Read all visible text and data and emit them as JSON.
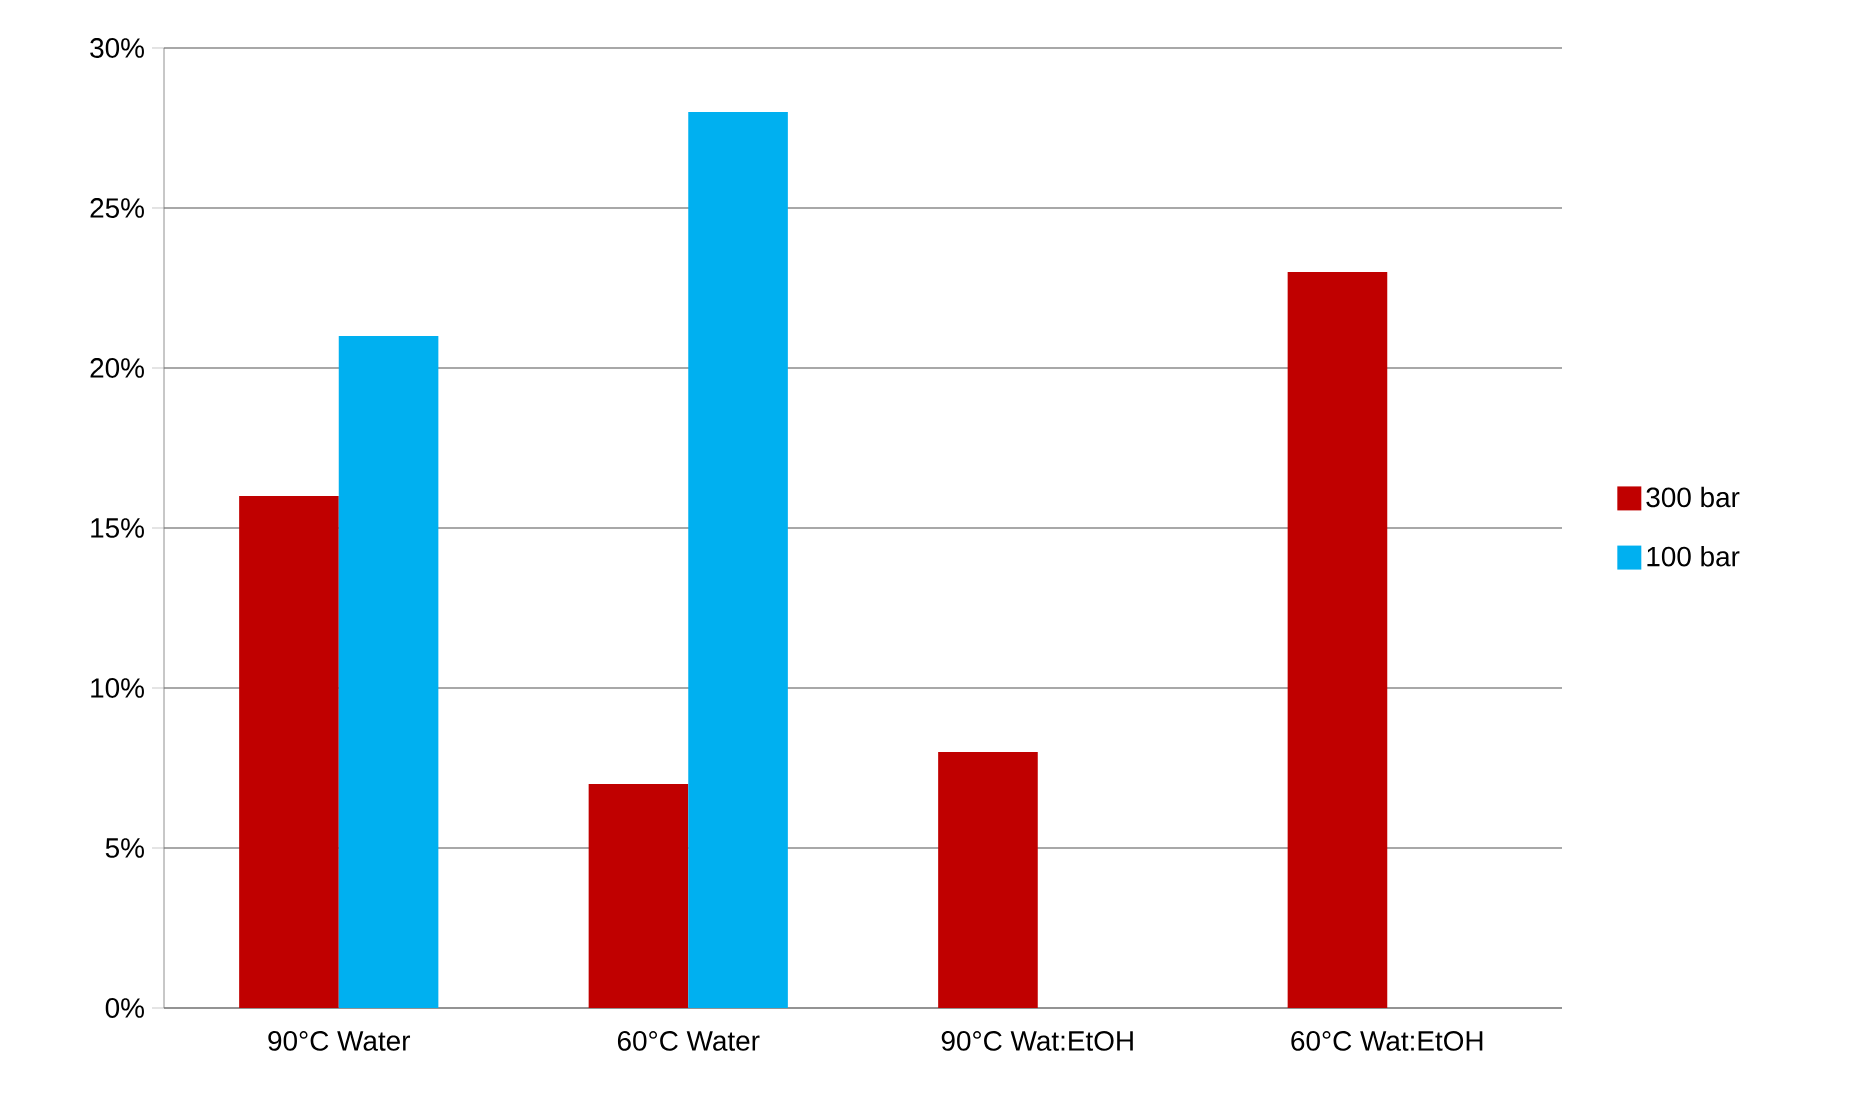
{
  "chart_data": {
    "type": "bar",
    "categories": [
      "90°C Water",
      "60°C Water",
      "90°C Wat:EtOH",
      "60°C Wat:EtOH"
    ],
    "series": [
      {
        "name": "300 bar",
        "color": "#c00000",
        "values": [
          16,
          7,
          8,
          23
        ]
      },
      {
        "name": "100 bar",
        "color": "#00b0f0",
        "values": [
          21,
          28,
          null,
          null
        ]
      }
    ],
    "ylim": [
      0,
      30
    ],
    "yticks": [
      {
        "value": 0,
        "label": "0%"
      },
      {
        "value": 5,
        "label": "5%"
      },
      {
        "value": 10,
        "label": "10%"
      },
      {
        "value": 15,
        "label": "15%"
      },
      {
        "value": 20,
        "label": "20%"
      },
      {
        "value": 25,
        "label": "25%"
      },
      {
        "value": 30,
        "label": "30%"
      }
    ],
    "grid": "y",
    "legend": "right"
  }
}
